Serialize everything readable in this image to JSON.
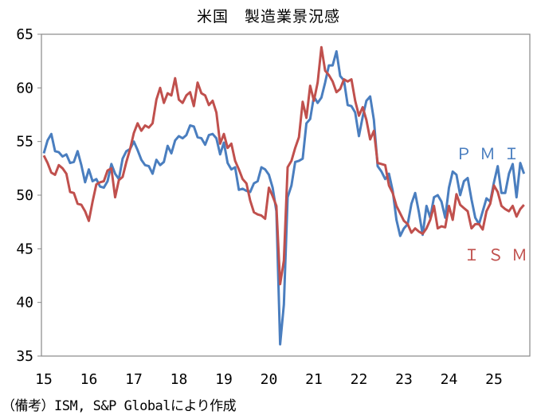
{
  "chart_data": {
    "type": "line",
    "title": "米国　製造業景況感",
    "note": "（備考）ISM, S&P Globalにより作成",
    "xlabel": "",
    "ylabel": "",
    "ylim": [
      35,
      65
    ],
    "yticks": [
      "35",
      "40",
      "45",
      "50",
      "55",
      "60",
      "65"
    ],
    "xticks": [
      "15",
      "16",
      "17",
      "18",
      "19",
      "20",
      "21",
      "22",
      "23",
      "24",
      "25"
    ],
    "x_start": "2015-01",
    "frequency": "monthly",
    "grid": false,
    "series": [
      {
        "name": "PMI",
        "label": "ＰＭＩ",
        "color": "#4a7ebf",
        "values": [
          53.9,
          55.1,
          55.7,
          54.1,
          54.0,
          53.6,
          53.8,
          53.0,
          53.1,
          54.1,
          52.8,
          51.2,
          52.4,
          51.3,
          51.5,
          50.8,
          50.7,
          51.3,
          52.9,
          52.0,
          51.5,
          53.4,
          54.1,
          54.3,
          55.0,
          54.2,
          53.3,
          52.8,
          52.7,
          52.0,
          53.3,
          52.8,
          53.1,
          54.6,
          53.9,
          55.1,
          55.5,
          55.3,
          55.6,
          56.5,
          56.4,
          55.4,
          55.3,
          54.7,
          55.6,
          55.7,
          55.3,
          53.8,
          54.9,
          53.0,
          52.4,
          52.6,
          50.5,
          50.6,
          50.4,
          50.3,
          51.1,
          51.3,
          52.6,
          52.4,
          51.9,
          50.7,
          48.5,
          36.1,
          39.8,
          49.8,
          50.9,
          53.1,
          53.2,
          53.4,
          56.7,
          57.1,
          59.2,
          58.6,
          59.1,
          60.5,
          62.1,
          62.1,
          63.4,
          61.1,
          60.7,
          58.4,
          58.3,
          57.7,
          55.5,
          57.3,
          58.8,
          59.2,
          57.0,
          52.7,
          52.2,
          51.5,
          52.0,
          50.4,
          47.7,
          46.2,
          46.9,
          47.3,
          49.2,
          50.2,
          48.4,
          46.3,
          49.0,
          47.9,
          49.8,
          50.0,
          49.4,
          47.9,
          50.7,
          52.2,
          51.9,
          50.0,
          51.3,
          51.6,
          49.6,
          47.9,
          47.3,
          48.5,
          49.7,
          49.4,
          51.2,
          52.7,
          50.2,
          50.2,
          52.0,
          52.9,
          49.8,
          53.0,
          52.0
        ]
      },
      {
        "name": "ISM",
        "label": "ＩＳＭ",
        "color": "#c0504d",
        "values": [
          53.7,
          53.0,
          52.1,
          51.9,
          52.8,
          52.5,
          52.0,
          50.3,
          50.2,
          49.2,
          49.1,
          48.5,
          47.6,
          49.4,
          51.0,
          51.2,
          51.3,
          52.3,
          52.5,
          49.8,
          51.4,
          51.7,
          53.1,
          54.3,
          55.8,
          56.7,
          56.0,
          56.5,
          56.3,
          56.7,
          58.9,
          60.0,
          58.6,
          59.5,
          59.3,
          60.9,
          58.9,
          58.6,
          59.3,
          59.6,
          58.3,
          60.5,
          59.5,
          59.3,
          58.4,
          58.8,
          57.7,
          54.8,
          55.7,
          54.4,
          54.8,
          53.2,
          52.4,
          51.5,
          51.1,
          49.5,
          48.4,
          48.2,
          48.1,
          47.8,
          50.7,
          49.9,
          49.0,
          41.7,
          43.9,
          52.6,
          53.2,
          54.4,
          55.4,
          58.7,
          57.2,
          60.2,
          58.8,
          60.5,
          63.8,
          61.6,
          61.2,
          60.6,
          59.6,
          59.9,
          60.8,
          60.6,
          60.8,
          58.8,
          57.4,
          58.2,
          57.0,
          55.2,
          56.0,
          53.0,
          52.9,
          52.8,
          50.9,
          50.2,
          49.0,
          48.3,
          47.6,
          47.3,
          46.5,
          46.9,
          46.6,
          46.4,
          46.9,
          47.7,
          49.0,
          46.9,
          47.1,
          47.0,
          49.0,
          47.7,
          50.1,
          49.1,
          48.8,
          48.5,
          46.9,
          47.3,
          47.3,
          46.8,
          48.5,
          49.2,
          50.9,
          50.3,
          49.0,
          48.7,
          48.5,
          49.0,
          48.0,
          48.7,
          49.1
        ]
      }
    ]
  }
}
